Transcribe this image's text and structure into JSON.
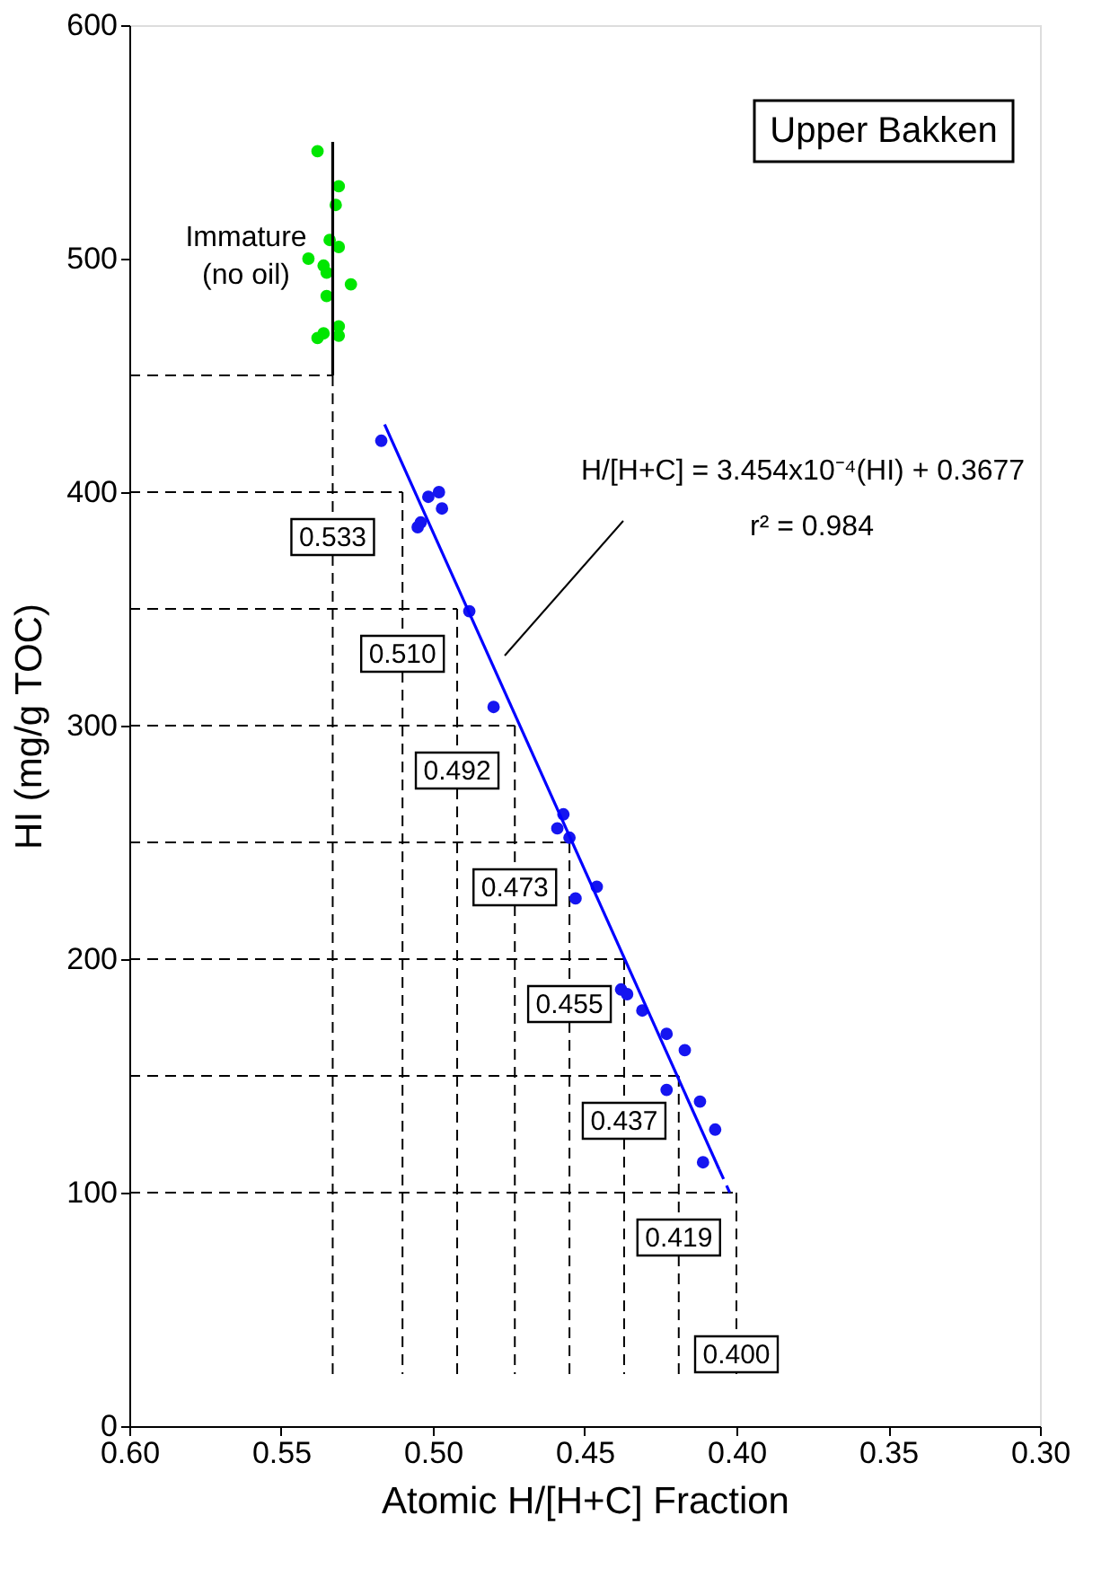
{
  "chart_data": {
    "type": "scatter",
    "xlabel": "Atomic H/[H+C] Fraction",
    "ylabel": "HI (mg/g TOC)",
    "xlim": [
      0.6,
      0.3
    ],
    "ylim": [
      0,
      600
    ],
    "xticks": [
      {
        "value": 0.6,
        "label": "0.60"
      },
      {
        "value": 0.55,
        "label": "0.55"
      },
      {
        "value": 0.5,
        "label": "0.50"
      },
      {
        "value": 0.45,
        "label": "0.45"
      },
      {
        "value": 0.4,
        "label": "0.40"
      },
      {
        "value": 0.35,
        "label": "0.35"
      },
      {
        "value": 0.3,
        "label": "0.30"
      }
    ],
    "yticks": [
      0,
      100,
      200,
      300,
      400,
      500,
      600
    ],
    "series": [
      {
        "marker": "circle",
        "color": "#00e600",
        "x": [
          0.538,
          0.531,
          0.532,
          0.534,
          0.531,
          0.541,
          0.536,
          0.535,
          0.527,
          0.535,
          0.531,
          0.536,
          0.531,
          0.538
        ],
        "values": [
          546,
          531,
          523,
          508,
          505,
          500,
          497,
          494,
          489,
          484,
          471,
          468,
          467,
          466
        ]
      },
      {
        "type": "line",
        "color": "#000000",
        "x": [
          0.533,
          0.533
        ],
        "values": [
          450,
          550
        ]
      },
      {
        "marker": "circle",
        "color": "#1515f0",
        "x": [
          0.517,
          0.5015,
          0.498,
          0.497,
          0.505,
          0.504,
          0.488,
          0.48,
          0.457,
          0.459,
          0.455,
          0.446,
          0.453,
          0.438,
          0.436,
          0.431,
          0.423,
          0.417,
          0.423,
          0.412,
          0.407,
          0.411
        ],
        "values": [
          422,
          398,
          400,
          393,
          385,
          387,
          349,
          308,
          262,
          256,
          252,
          231,
          226,
          187,
          185,
          178,
          168,
          161,
          144,
          139,
          127,
          113
        ]
      },
      {
        "type": "line",
        "color": "#0000ff",
        "line_style": "solid",
        "x": [
          0.5159,
          0.4057
        ],
        "values": [
          429,
          110
        ]
      },
      {
        "type": "line",
        "color": "#0000ff",
        "line_style": "dashed",
        "x": [
          0.4057,
          0.4022
        ],
        "values": [
          110,
          100
        ]
      }
    ],
    "ref_lines": [
      {
        "axis": "y",
        "value": 450,
        "color": "#000000",
        "line_style": "dashed"
      },
      {
        "axis": "y",
        "value": 400,
        "color": "#000000",
        "line_style": "dashed"
      },
      {
        "axis": "y",
        "value": 350,
        "color": "#000000",
        "line_style": "dashed"
      },
      {
        "axis": "y",
        "value": 300,
        "color": "#000000",
        "line_style": "dashed"
      },
      {
        "axis": "y",
        "value": 250,
        "color": "#000000",
        "line_style": "dashed"
      },
      {
        "axis": "y",
        "value": 200,
        "color": "#000000",
        "line_style": "dashed"
      },
      {
        "axis": "y",
        "value": 150,
        "color": "#000000",
        "line_style": "dashed"
      },
      {
        "axis": "y",
        "value": 100,
        "color": "#000000",
        "line_style": "dashed"
      },
      {
        "axis": "x",
        "value": 0.533,
        "label": "0.533",
        "color": "#000000",
        "line_style": "dashed"
      },
      {
        "axis": "x",
        "value": 0.51,
        "label": "0.510",
        "color": "#000000",
        "line_style": "dashed"
      },
      {
        "axis": "x",
        "value": 0.492,
        "label": "0.492",
        "color": "#000000",
        "line_style": "dashed"
      },
      {
        "axis": "x",
        "value": 0.473,
        "label": "0.473",
        "color": "#000000",
        "line_style": "dashed"
      },
      {
        "axis": "x",
        "value": 0.455,
        "label": "0.455",
        "color": "#000000",
        "line_style": "dashed"
      },
      {
        "axis": "x",
        "value": 0.437,
        "label": "0.437",
        "color": "#000000",
        "line_style": "dashed"
      },
      {
        "axis": "x",
        "value": 0.419,
        "label": "0.419",
        "color": "#000000",
        "line_style": "dashed"
      },
      {
        "axis": "x",
        "value": 0.4,
        "label": "0.400",
        "color": "#000000",
        "line_style": "dashed"
      }
    ],
    "annotations": [
      "Upper Bakken",
      "Immature\n(no oil)",
      "H/[H+C] = 3.454x10⁻⁴(HI) + 0.3677",
      "r² = 0.984"
    ]
  }
}
